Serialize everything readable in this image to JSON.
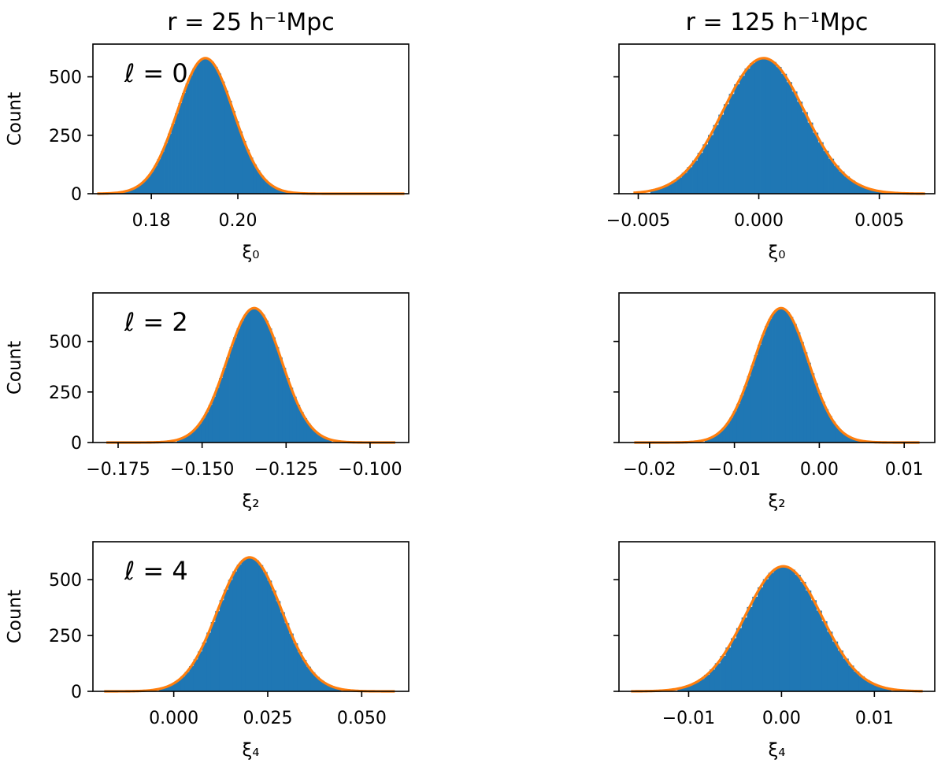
{
  "chart_data": [
    {
      "type": "histogram",
      "column_title": "r = 25 h⁻¹Mpc",
      "annotation": "ℓ = 0",
      "xlabel": "ξ₀",
      "ylabel": "Count",
      "xlim": [
        0.1665,
        0.2395
      ],
      "ylim": [
        0,
        640
      ],
      "xticks": [
        0.18,
        0.2
      ],
      "xtick_labels": [
        "0.18",
        "0.20"
      ],
      "yticks": [
        0,
        250,
        500
      ],
      "ytick_labels": [
        "0",
        "250",
        "500"
      ],
      "hist": {
        "mean": 0.1925,
        "sigma": 0.0065,
        "peak": 580,
        "range": [
          0.1715,
          0.2125
        ],
        "bins": 50
      },
      "fit": {
        "mean": 0.1925,
        "sigma": 0.0065,
        "peak": 580,
        "range": [
          0.1675,
          0.2385
        ]
      }
    },
    {
      "type": "histogram",
      "column_title": "r = 125 h⁻¹Mpc",
      "annotation": "",
      "xlabel": "ξ₀",
      "ylabel": "",
      "xlim": [
        -0.0058,
        0.0073
      ],
      "ylim": [
        0,
        640
      ],
      "xticks": [
        -0.005,
        0.0,
        0.005
      ],
      "xtick_labels": [
        "−0.005",
        "0.000",
        "0.005"
      ],
      "yticks": [
        0,
        250,
        500
      ],
      "ytick_labels": [
        "",
        "",
        ""
      ],
      "hist": {
        "mean": 0.0002,
        "sigma": 0.0017,
        "peak": 580,
        "range": [
          -0.0045,
          0.0055
        ],
        "bins": 46
      },
      "fit": {
        "mean": 0.0002,
        "sigma": 0.0017,
        "peak": 580,
        "range": [
          -0.0052,
          0.0069
        ]
      }
    },
    {
      "type": "histogram",
      "column_title": "",
      "annotation": "ℓ = 2",
      "xlabel": "ξ₂",
      "ylabel": "Count",
      "xlim": [
        -0.1825,
        -0.0885
      ],
      "ylim": [
        0,
        740
      ],
      "xticks": [
        -0.175,
        -0.15,
        -0.125,
        -0.1
      ],
      "xtick_labels": [
        "−0.175",
        "−0.150",
        "−0.125",
        "−0.100"
      ],
      "yticks": [
        0,
        250,
        500
      ],
      "ytick_labels": [
        "0",
        "250",
        "500"
      ],
      "hist": {
        "mean": -0.1345,
        "sigma": 0.0082,
        "peak": 665,
        "range": [
          -0.1575,
          -0.1115
        ],
        "bins": 44
      },
      "fit": {
        "mean": -0.1345,
        "sigma": 0.0082,
        "peak": 665,
        "range": [
          -0.1785,
          -0.0925
        ]
      }
    },
    {
      "type": "histogram",
      "column_title": "",
      "annotation": "",
      "xlabel": "ξ₂",
      "ylabel": "",
      "xlim": [
        -0.0236,
        0.0136
      ],
      "ylim": [
        0,
        740
      ],
      "xticks": [
        -0.02,
        -0.01,
        0.0,
        0.01
      ],
      "xtick_labels": [
        "−0.02",
        "−0.01",
        "0.00",
        "0.01"
      ],
      "yticks": [
        0,
        250,
        500
      ],
      "ytick_labels": [
        "",
        "",
        ""
      ],
      "hist": {
        "mean": -0.0045,
        "sigma": 0.0032,
        "peak": 665,
        "range": [
          -0.0135,
          0.0048
        ],
        "bins": 44
      },
      "fit": {
        "mean": -0.0045,
        "sigma": 0.0032,
        "peak": 665,
        "range": [
          -0.0218,
          0.0118
        ]
      }
    },
    {
      "type": "histogram",
      "column_title": "",
      "annotation": "ℓ = 4",
      "xlabel": "ξ₄",
      "ylabel": "Count",
      "xlim": [
        -0.0215,
        0.0625
      ],
      "ylim": [
        0,
        670
      ],
      "xticks": [
        0.0,
        0.025,
        0.05
      ],
      "xtick_labels": [
        "0.000",
        "0.025",
        "0.050"
      ],
      "yticks": [
        0,
        250,
        500
      ],
      "ytick_labels": [
        "0",
        "250",
        "500"
      ],
      "hist": {
        "mean": 0.0202,
        "sigma": 0.0085,
        "peak": 600,
        "range": [
          -0.004,
          0.0445
        ],
        "bins": 42
      },
      "fit": {
        "mean": 0.0202,
        "sigma": 0.0085,
        "peak": 600,
        "range": [
          -0.0185,
          0.0588
        ]
      }
    },
    {
      "type": "histogram",
      "column_title": "",
      "annotation": "",
      "xlabel": "ξ₄",
      "ylabel": "",
      "xlim": [
        -0.0175,
        0.0165
      ],
      "ylim": [
        0,
        670
      ],
      "xticks": [
        -0.01,
        0.0,
        0.01
      ],
      "xtick_labels": [
        "−0.01",
        "0.00",
        "0.01"
      ],
      "yticks": [
        0,
        250,
        500
      ],
      "ytick_labels": [
        "",
        "",
        ""
      ],
      "hist": {
        "mean": 0.0002,
        "sigma": 0.0041,
        "peak": 560,
        "range": [
          -0.0112,
          0.0118
        ],
        "bins": 40
      },
      "fit": {
        "mean": 0.0002,
        "sigma": 0.0041,
        "peak": 560,
        "range": [
          -0.0162,
          0.0152
        ]
      }
    }
  ],
  "colors": {
    "bars": "#1f77b4",
    "fit": "#ff7f0e",
    "axes": "#000000"
  }
}
